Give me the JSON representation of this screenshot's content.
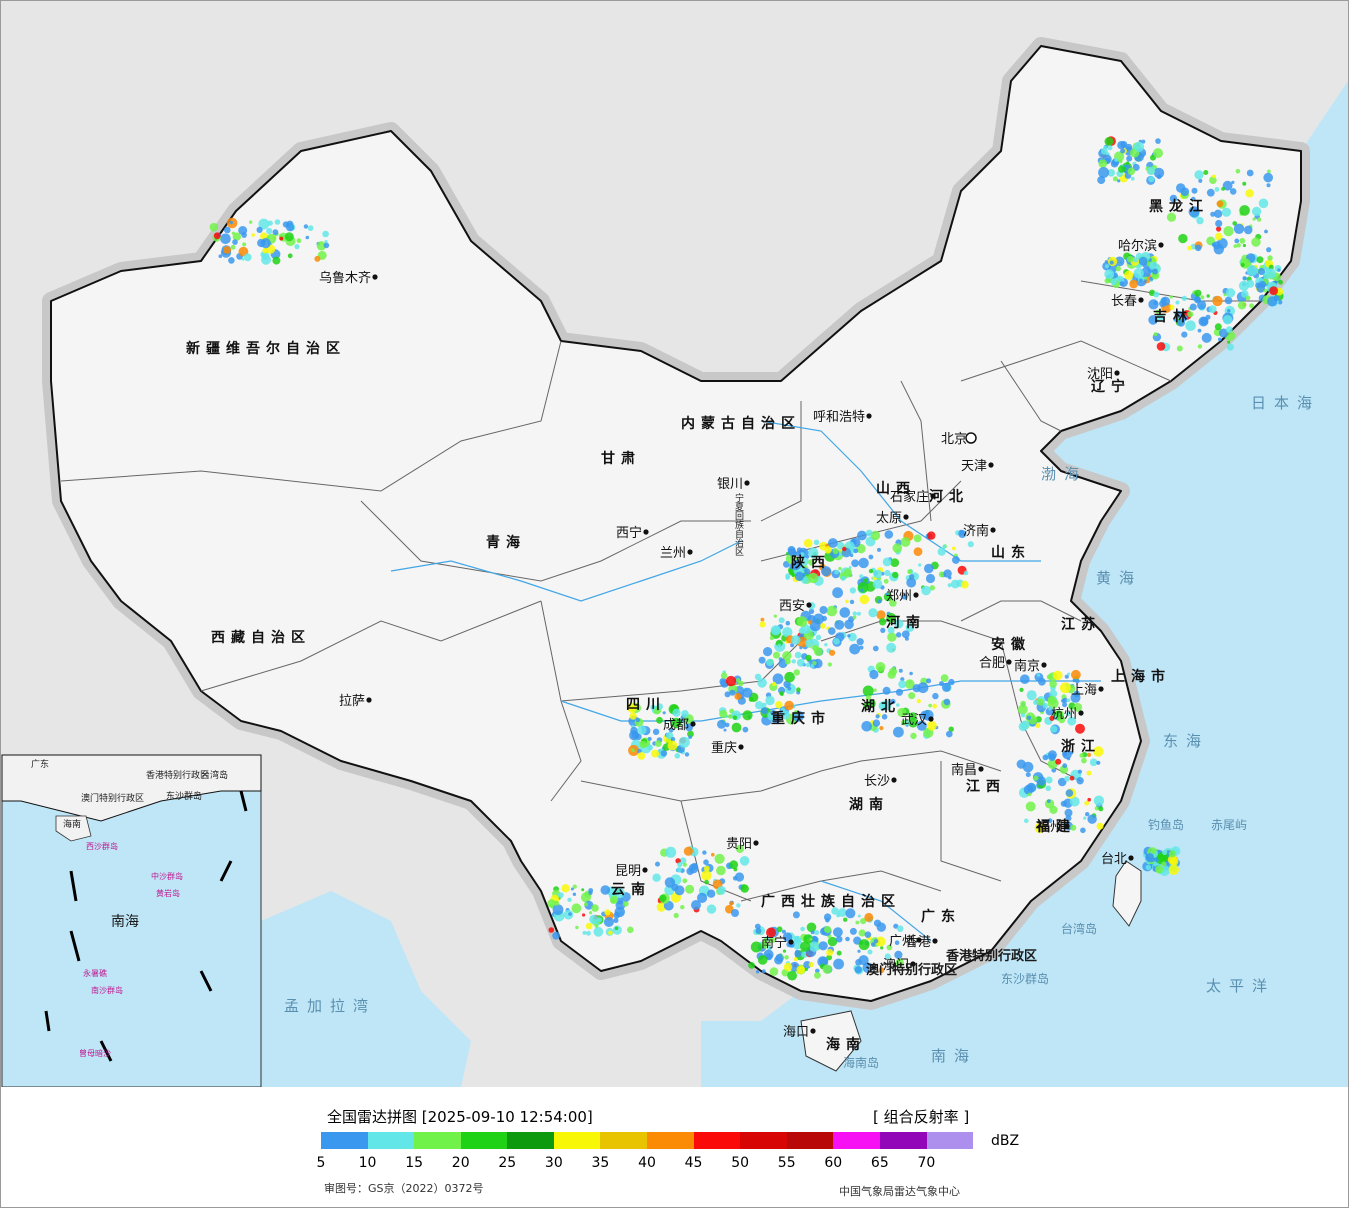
{
  "legend": {
    "title": "全国雷达拼图 [2025-09-10 12:54:00]",
    "product": "[ 组合反射率 ]",
    "unit": "dBZ",
    "ticks": [
      "5",
      "10",
      "15",
      "20",
      "25",
      "30",
      "35",
      "40",
      "45",
      "50",
      "55",
      "60",
      "65",
      "70"
    ],
    "colors": [
      "#3a98ee",
      "#63e6e8",
      "#71f24a",
      "#20d215",
      "#0d9a0f",
      "#f8f806",
      "#e8c400",
      "#fb8a04",
      "#fb0a0a",
      "#d80505",
      "#b80808",
      "#f810f5",
      "#9208b8",
      "#ad90ee"
    ],
    "approval": "审图号：GS京（2022）0372号",
    "agency": "中国气象局雷达气象中心"
  },
  "map": {
    "regions": [
      "新疆维吾尔自治区",
      "西藏自治区",
      "青海",
      "甘肃",
      "四川",
      "云南",
      "广西壮族自治区",
      "广东",
      "湖南",
      "湖北",
      "河南",
      "河北",
      "山东",
      "江苏",
      "安徽",
      "浙江",
      "福建",
      "江西",
      "山西",
      "陕西",
      "内蒙古自治区",
      "黑龙江",
      "吉林",
      "辽宁",
      "海南",
      "重庆市",
      "上海市"
    ],
    "cities": [
      "乌鲁木齐",
      "拉萨",
      "西宁",
      "兰州",
      "银川",
      "呼和浩特",
      "北京",
      "天津",
      "石家庄",
      "太原",
      "济南",
      "郑州",
      "西安",
      "成都",
      "重庆",
      "贵阳",
      "昆明",
      "南宁",
      "广州",
      "长沙",
      "武汉",
      "合肥",
      "南京",
      "杭州",
      "上海",
      "南昌",
      "福州",
      "台北",
      "哈尔滨",
      "长春",
      "沈阳",
      "海口",
      "香港",
      "澳门"
    ],
    "seas": [
      "日本海",
      "渤海",
      "黄海",
      "东海",
      "太平洋",
      "南海",
      "孟加拉湾"
    ],
    "islands": [
      "钓鱼岛",
      "赤尾屿",
      "台湾岛",
      "东沙群岛",
      "海南岛"
    ],
    "special_regions": [
      "香港特别行政区",
      "澳门特别行政区",
      "宁夏回族自治区"
    ],
    "inset_labels": [
      "广东",
      "香港特别行政区",
      "澳门特别行政区",
      "海南",
      "东沙群岛",
      "西沙群岛",
      "中沙群岛",
      "黄岩岛",
      "南海",
      "南沙群岛",
      "永暑礁",
      "曾母暗沙",
      "台湾岛"
    ]
  }
}
